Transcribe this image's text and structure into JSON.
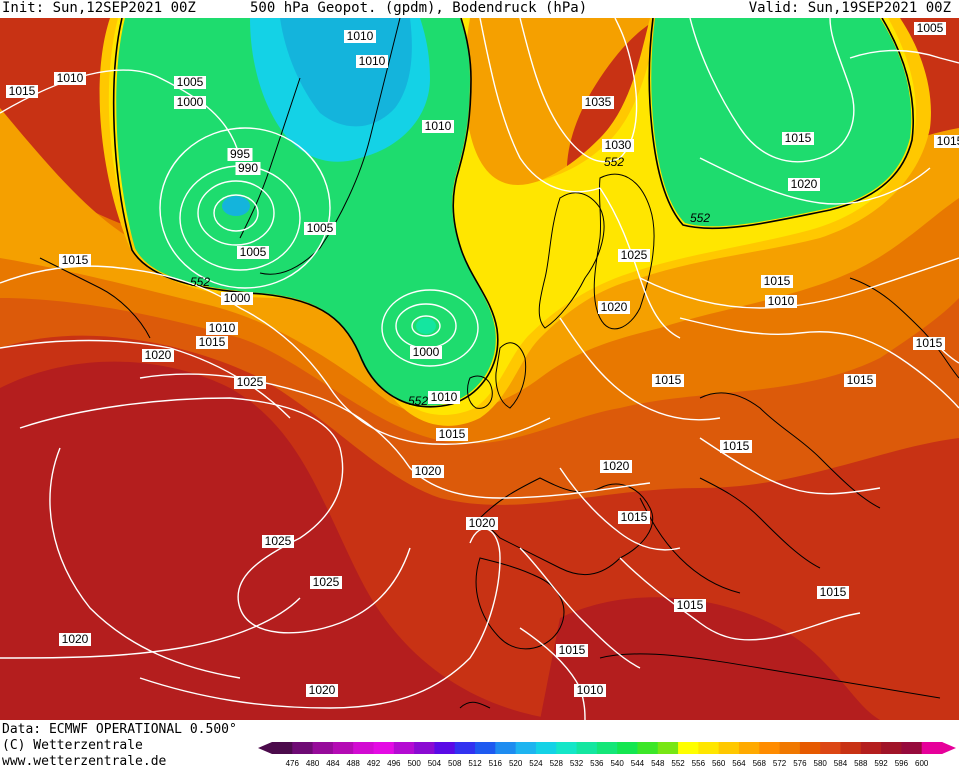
{
  "header": {
    "init": "Init: Sun,12SEP2021 00Z",
    "title": "500 hPa Geopot. (gpdm), Bodendruck (hPa)",
    "valid": "Valid: Sun,19SEP2021 00Z"
  },
  "footer": {
    "data_source": "Data: ECMWF OPERATIONAL 0.500°",
    "copyright": "(C) Wetterzentrale",
    "website": "www.wetterzentrale.de"
  },
  "legend": {
    "labels": [
      "476",
      "480",
      "484",
      "488",
      "492",
      "496",
      "500",
      "504",
      "508",
      "512",
      "516",
      "520",
      "524",
      "528",
      "532",
      "536",
      "540",
      "544",
      "548",
      "552",
      "556",
      "560",
      "564",
      "568",
      "572",
      "576",
      "580",
      "584",
      "588",
      "592",
      "596",
      "600"
    ],
    "colors": [
      "#4b0a4b",
      "#6e0a74",
      "#960a9a",
      "#b40ab4",
      "#d20ad2",
      "#e40ae4",
      "#b40ad2",
      "#8a0ad2",
      "#5a0ae6",
      "#3232f0",
      "#1e5af0",
      "#1e8cf0",
      "#1eb4f0",
      "#14d2e6",
      "#14e6c8",
      "#14e6a0",
      "#14e678",
      "#14e650",
      "#3ce628",
      "#78e614",
      "#ffff00",
      "#ffe600",
      "#ffc800",
      "#ffaa00",
      "#ff8c00",
      "#f07800",
      "#e65a00",
      "#dc4614",
      "#c83214",
      "#b41e1e",
      "#a01428",
      "#960a3c",
      "#e6009a"
    ]
  },
  "map": {
    "colors": {
      "green": "#1edc6e",
      "green_light": "#3ce650",
      "cyan": "#14b4dc",
      "cyan_deep": "#14d2e6",
      "yellow": "#ffe600",
      "yellow2": "#ffc800",
      "orange": "#f5a000",
      "orange2": "#e87800",
      "orange3": "#dc5a0a",
      "red": "#c83214",
      "red_dark": "#b41e1e"
    },
    "isobar_labels": [
      "1010",
      "1015",
      "1010",
      "1005",
      "1000",
      "995",
      "990",
      "1005",
      "1010",
      "1010",
      "1015",
      "1000",
      "1010",
      "1015",
      "1020",
      "1025",
      "1005",
      "1000",
      "1010",
      "1015",
      "1020",
      "1035",
      "1030",
      "1025",
      "1020",
      "1015",
      "1005",
      "1015",
      "1020",
      "1015",
      "1010",
      "1015",
      "1015",
      "1015",
      "1015",
      "1020",
      "1015",
      "1020",
      "1025",
      "1025",
      "1020",
      "1015",
      "1015",
      "1015",
      "1010",
      "1020"
    ],
    "geopot_labels": [
      "552",
      "552",
      "552",
      "552"
    ]
  }
}
